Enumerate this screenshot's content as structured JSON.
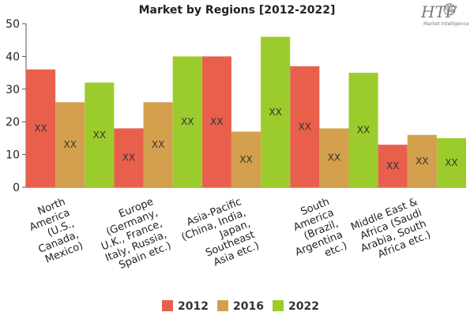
{
  "logo": {
    "text": "HTF",
    "subtitle": "Market Intelligence"
  },
  "chart_data": {
    "type": "bar",
    "title": "Market by Regions [2012-2022]",
    "xlabel": "",
    "ylabel": "",
    "ylim": [
      0,
      50
    ],
    "yticks": [
      0,
      10,
      20,
      30,
      40,
      50
    ],
    "grid": false,
    "legend_position": "bottom",
    "categories": [
      [
        "North",
        "America",
        "(U.S.,",
        "Canada,",
        "Mexico)"
      ],
      [
        "Europe",
        "(Germany,",
        "U.K., France,",
        "Italy, Russia,",
        "Spain etc.)"
      ],
      [
        "Asia-Pacific",
        "(China, India,",
        "Japan,",
        "Southeast",
        "Asia etc.)"
      ],
      [
        "South",
        "America",
        "(Brazil,",
        "Argentina",
        "etc.)"
      ],
      [
        "Middle East &",
        "Africa (Saudi",
        "Arabia, South",
        "Africa etc.)"
      ]
    ],
    "series": [
      {
        "name": "2012",
        "color": "#e8604c",
        "values": [
          36,
          18,
          40,
          37,
          13
        ]
      },
      {
        "name": "2016",
        "color": "#d4a04e",
        "values": [
          26,
          26,
          17,
          18,
          16
        ]
      },
      {
        "name": "2022",
        "color": "#9ccc2c",
        "values": [
          32,
          40,
          46,
          35,
          15
        ]
      }
    ],
    "data_label": "XX"
  }
}
